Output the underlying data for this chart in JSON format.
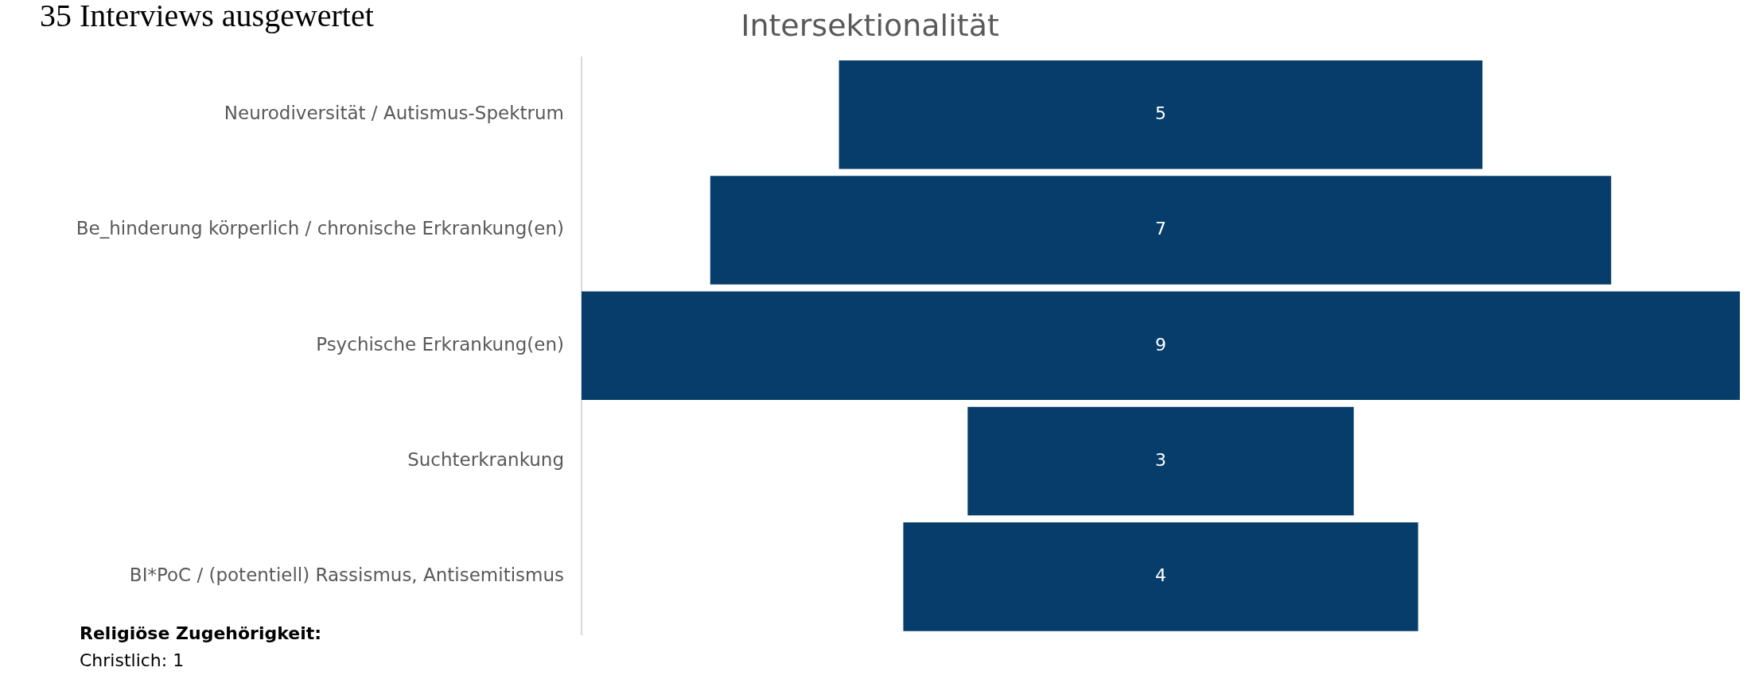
{
  "chart_data": {
    "type": "other",
    "title": "Intersektionalität",
    "categories": [
      "Neurodiversität / Autismus-Spektrum",
      "Be_hinderung körperlich / chronische Erkrankung(en)",
      "Psychische Erkrankung(en)",
      "Suchterkrankung",
      "BI*PoC / (potentiell) Rassismus, Antisemitismus"
    ],
    "values": [
      5,
      7,
      9,
      3,
      4
    ],
    "color": "#073d6a",
    "data_labels": true,
    "annotations": [
      "35 Interviews ausgewertet",
      "Religiöse Zugehörigkeit:",
      "Christlich: 1"
    ]
  }
}
